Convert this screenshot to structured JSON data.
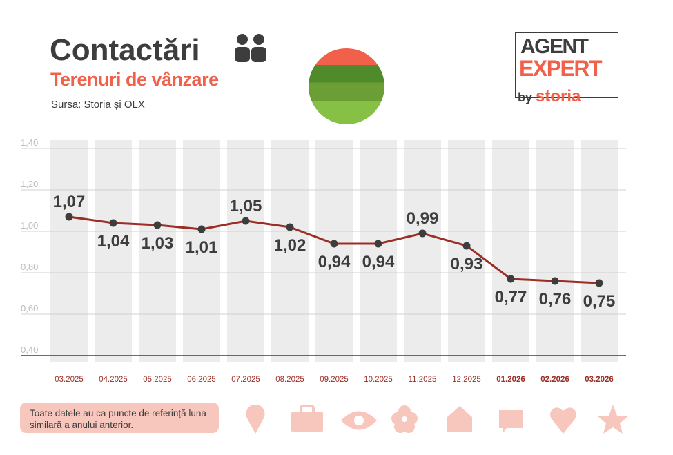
{
  "header": {
    "title": "Contactări",
    "subtitle": "Terenuri de vânzare",
    "source": "Sursa: Storia și OLX"
  },
  "logo": {
    "line1": "AGENT",
    "line2": "EXPERT",
    "by": "by",
    "brand": "storia"
  },
  "footer_note": "Toate datele au ca puncte de referință luna similară a anului anterior.",
  "decorative_icons": [
    "pin-icon",
    "briefcase-icon",
    "eye-icon",
    "flower-icon",
    "house-icon",
    "chat-icon",
    "heart-icon",
    "star-icon"
  ],
  "colors": {
    "line": "#9b2f26",
    "accent": "#f0604a",
    "bar": "#ececec",
    "point": "#3d3d3d",
    "icon": "#f7c6bc"
  },
  "chart_data": {
    "type": "line",
    "categories": [
      "03.2025",
      "04.2025",
      "05.2025",
      "06.2025",
      "07.2025",
      "08.2025",
      "09.2025",
      "10.2025",
      "11.2025",
      "12.2025",
      "01.2026",
      "02.2026",
      "03.2026"
    ],
    "values": [
      1.07,
      1.04,
      1.03,
      1.01,
      1.05,
      1.02,
      0.94,
      0.94,
      0.99,
      0.93,
      0.77,
      0.76,
      0.75
    ],
    "value_labels": [
      "1,07",
      "1,04",
      "1,03",
      "1,01",
      "1,05",
      "1,02",
      "0,94",
      "0,94",
      "0,99",
      "0,93",
      "0,77",
      "0,76",
      "0,75"
    ],
    "label_position": [
      "above",
      "below",
      "below",
      "below",
      "above",
      "below",
      "below",
      "below",
      "above",
      "below",
      "below",
      "below",
      "below"
    ],
    "bold_categories": [
      "01.2026",
      "02.2026",
      "03.2026"
    ],
    "yticks": [
      0.4,
      0.6,
      0.8,
      1.0,
      1.2,
      1.4
    ],
    "ytick_labels": [
      "0,40",
      "0,60",
      "0,80",
      "1,00",
      "1,20",
      "1,40"
    ],
    "ylim": [
      0.4,
      1.4
    ],
    "grid": true
  }
}
